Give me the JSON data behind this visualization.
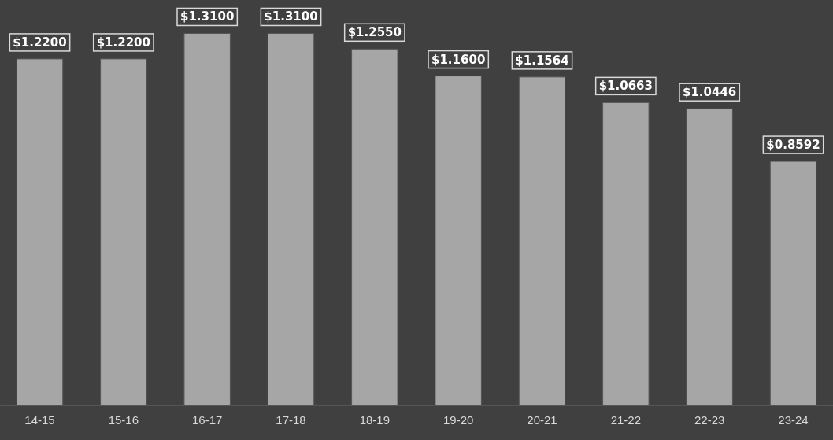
{
  "chart_data": {
    "type": "bar",
    "categories": [
      "14-15",
      "15-16",
      "16-17",
      "17-18",
      "18-19",
      "19-20",
      "20-21",
      "21-22",
      "22-23",
      "23-24"
    ],
    "values": [
      1.22,
      1.22,
      1.31,
      1.31,
      1.255,
      1.16,
      1.1564,
      1.0663,
      1.0446,
      0.8592
    ],
    "value_labels": [
      "$1.2200",
      "$1.2200",
      "$1.3100",
      "$1.3100",
      "$1.2550",
      "$1.1600",
      "$1.1564",
      "$1.0663",
      "$1.0446",
      "$0.8592"
    ],
    "color": "#a6a6a6",
    "ylim": [
      0,
      1.4
    ],
    "tick_labels": "x",
    "grid": false
  }
}
